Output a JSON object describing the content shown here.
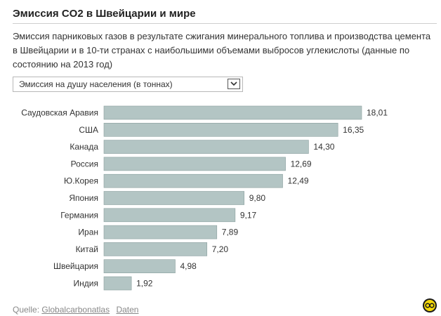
{
  "header": {
    "title": "Эмиссия CO2 в Швейцарии и мире",
    "subtitle": "Эмиссия парниковых газов в результате сжигания минерального топлива и производства цемента в Швейцарии и в 10-ти странах с наибольшими объемами выбросов углекислоты (данные по состоянию на 2013 год)"
  },
  "selector": {
    "value": "Эмиссия на душу населения (в тоннах)"
  },
  "chart_data": {
    "type": "bar",
    "orientation": "horizontal",
    "categories": [
      "Саудовская Аравия",
      "США",
      "Канада",
      "Россия",
      "Ю.Корея",
      "Япония",
      "Германия",
      "Иран",
      "Китай",
      "Швейцария",
      "Индия"
    ],
    "values": [
      18.01,
      16.35,
      14.3,
      12.69,
      12.49,
      9.8,
      9.17,
      7.89,
      7.2,
      4.98,
      1.92
    ],
    "value_labels": [
      "18,01",
      "16,35",
      "14,30",
      "12,69",
      "12,49",
      "9,80",
      "9,17",
      "7,89",
      "7,20",
      "4,98",
      "1,92"
    ],
    "xlim": [
      0,
      18.01
    ],
    "bar_color": "#b3c5c4",
    "bar_stroke": "#8a9f9e",
    "grid": false,
    "legend": "none"
  },
  "footer": {
    "source_prefix": "Quelle:",
    "source_link": "Globalcarbonatlas",
    "data_link": "Daten"
  },
  "colors": {
    "logo_ring": "#1a1a1a",
    "logo_fill": "#f5d90a"
  }
}
